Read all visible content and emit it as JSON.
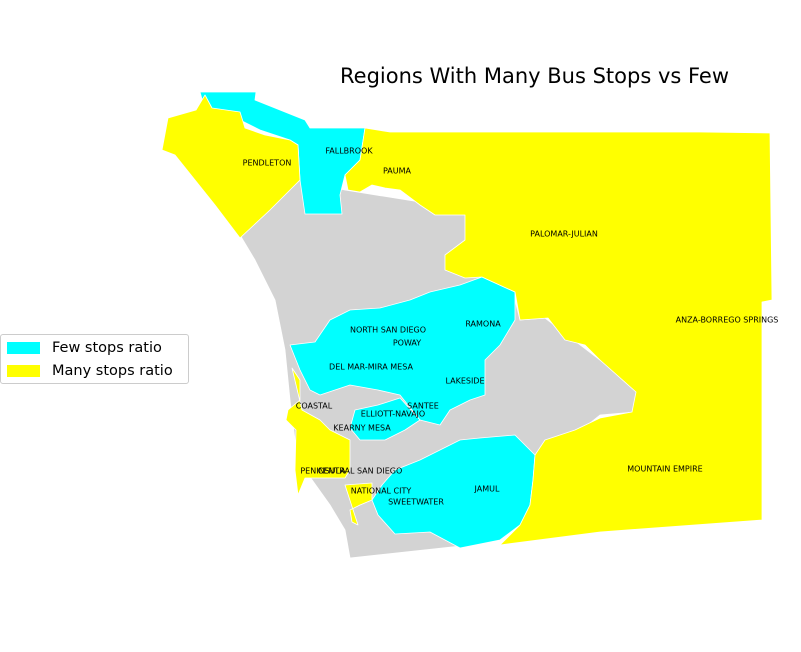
{
  "title": "Regions With Many Bus Stops vs Few",
  "colors": {
    "few": "#00ffff",
    "many": "#ffff00",
    "neutral": "#d3d3d3",
    "border": "#ffffff"
  },
  "legend": [
    {
      "label": "Few stops ratio",
      "color": "#00ffff"
    },
    {
      "label": "Many stops ratio",
      "color": "#ffff00"
    }
  ],
  "regions": [
    {
      "name": "FALLBROOK",
      "category": "few"
    },
    {
      "name": "PENDLETON",
      "category": "many"
    },
    {
      "name": "PAUMA",
      "category": "many"
    },
    {
      "name": "PALOMAR-JULIAN",
      "category": "many"
    },
    {
      "name": "ANZA-BORREGO SPRINGS",
      "category": "many"
    },
    {
      "name": "NORTH SAN DIEGO",
      "category": "few"
    },
    {
      "name": "RAMONA",
      "category": "few"
    },
    {
      "name": "POWAY",
      "category": "few"
    },
    {
      "name": "DEL MAR-MIRA MESA",
      "category": "few"
    },
    {
      "name": "LAKESIDE",
      "category": "few"
    },
    {
      "name": "COASTAL",
      "category": "many"
    },
    {
      "name": "SANTEE",
      "category": "few"
    },
    {
      "name": "ELLIOTT-NAVAJO",
      "category": "few"
    },
    {
      "name": "KEARNY MESA",
      "category": "few"
    },
    {
      "name": "MOUNTAIN EMPIRE",
      "category": "many"
    },
    {
      "name": "PENINSULA",
      "category": "many"
    },
    {
      "name": "CENTRAL SAN DIEGO",
      "category": "neutral"
    },
    {
      "name": "NATIONAL CITY",
      "category": "many"
    },
    {
      "name": "SWEETWATER",
      "category": "few"
    },
    {
      "name": "JAMUL",
      "category": "few"
    }
  ]
}
